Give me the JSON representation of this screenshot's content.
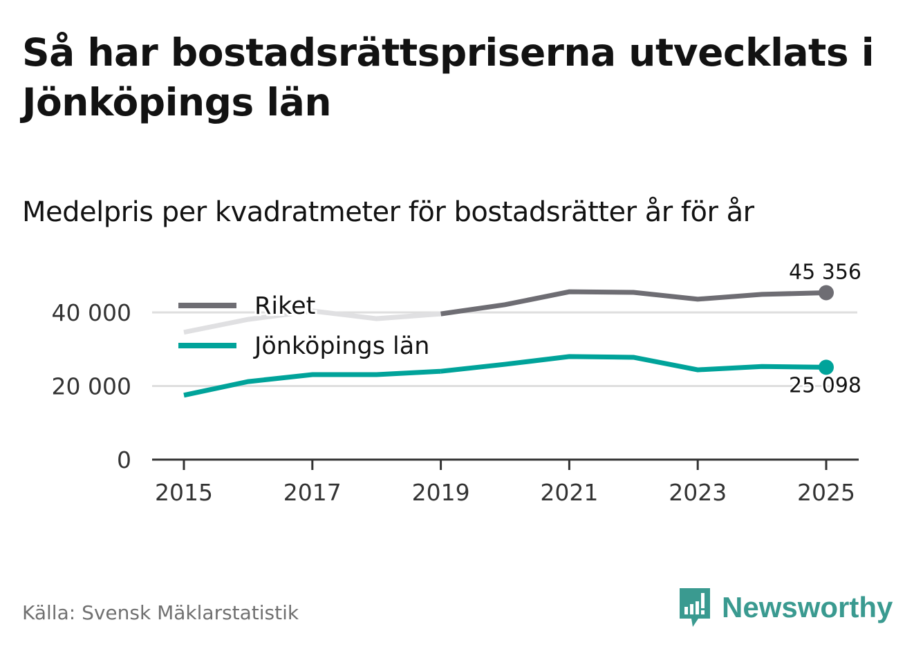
{
  "title": "Så har bostadsrättspriserna utvecklats i Jönköpings län",
  "subtitle": "Medelpris per kvadratmeter för bostadsrätter år för år",
  "source": "Källa: Svensk Mäklarstatistik",
  "brand": "Newsworthy",
  "chart_data": {
    "type": "line",
    "x": [
      2015,
      2016,
      2017,
      2018,
      2019,
      2020,
      2021,
      2022,
      2023,
      2024,
      2025
    ],
    "xticks": [
      "2015",
      "2017",
      "2019",
      "2021",
      "2023",
      "2025"
    ],
    "yticks": [
      {
        "v": 0,
        "label": "0"
      },
      {
        "v": 20000,
        "label": "20 000"
      },
      {
        "v": 40000,
        "label": "40 000"
      }
    ],
    "ylim": [
      0,
      50000
    ],
    "highlight_from": 2019,
    "series": [
      {
        "name": "Riket",
        "color": "#6e6d73",
        "faded_color": "#e0e0e2",
        "values": [
          34600,
          38100,
          40400,
          38300,
          39600,
          42100,
          45600,
          45450,
          43600,
          44900,
          45356
        ],
        "end_label": "45 356"
      },
      {
        "name": "Jönköpings län",
        "color": "#00a39a",
        "faded_color": "#00a39a",
        "values": [
          17500,
          21200,
          23100,
          23100,
          24000,
          25900,
          28000,
          27800,
          24400,
          25300,
          25098
        ],
        "end_label": "25 098"
      }
    ],
    "legend": "top-left"
  }
}
